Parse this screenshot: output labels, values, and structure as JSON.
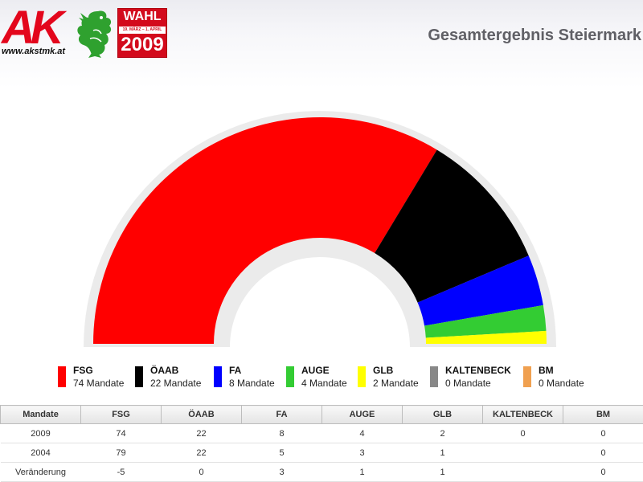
{
  "header": {
    "logo_text": "AK",
    "logo_url": "www.akstmk.at",
    "badge_top": "WAHL",
    "badge_dates": "19. MÄRZ – 1. APRIL",
    "badge_year": "2009",
    "title": "Gesamtergebnis Steiermark"
  },
  "colors": {
    "FSG": "#ff0000",
    "ÖAAB": "#000000",
    "FA": "#0000ff",
    "AUGE": "#33cc33",
    "GLB": "#ffff00",
    "KALTENBECK": "#888888",
    "BM": "#f0a050"
  },
  "chart_data": {
    "type": "pie",
    "subtype": "semicircle-parliament",
    "title": "Gesamtergebnis Steiermark",
    "categories": [
      "FSG",
      "ÖAAB",
      "FA",
      "AUGE",
      "GLB",
      "KALTENBECK",
      "BM"
    ],
    "values": [
      74,
      22,
      8,
      4,
      2,
      0,
      0
    ],
    "unit_label": "Mandate",
    "legend_position": "bottom"
  },
  "legend": {
    "items": [
      {
        "name": "FSG",
        "mandate": "74 Mandate"
      },
      {
        "name": "ÖAAB",
        "mandate": "22 Mandate"
      },
      {
        "name": "FA",
        "mandate": "8 Mandate"
      },
      {
        "name": "AUGE",
        "mandate": "4 Mandate"
      },
      {
        "name": "GLB",
        "mandate": "2 Mandate"
      },
      {
        "name": "KALTENBECK",
        "mandate": "0 Mandate"
      },
      {
        "name": "BM",
        "mandate": "0 Mandate"
      }
    ]
  },
  "table": {
    "headers": [
      "Mandate",
      "FSG",
      "ÖAAB",
      "FA",
      "AUGE",
      "GLB",
      "KALTENBECK",
      "BM"
    ],
    "rows": [
      [
        "2009",
        "74",
        "22",
        "8",
        "4",
        "2",
        "0",
        "0"
      ],
      [
        "2004",
        "79",
        "22",
        "5",
        "3",
        "1",
        "",
        "0"
      ],
      [
        "Veränderung",
        "-5",
        "0",
        "3",
        "1",
        "1",
        "",
        "0"
      ]
    ]
  }
}
